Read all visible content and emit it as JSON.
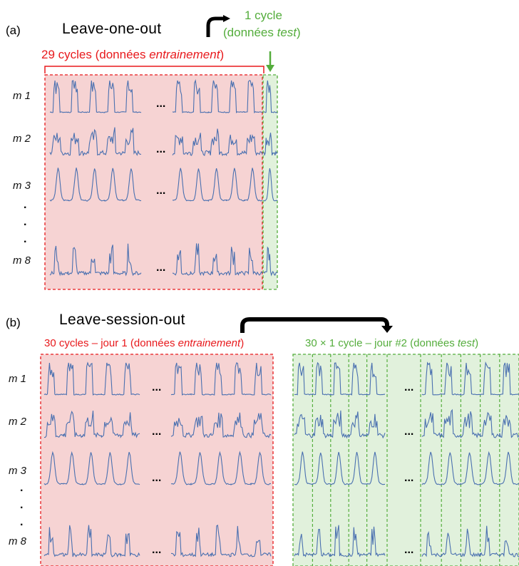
{
  "panel_a": {
    "label": "(a)",
    "title": "Leave-one-out",
    "test_line1": "1 cycle",
    "test_line2_pre": "(données ",
    "test_line2_it": "test",
    "test_line2_post": ")",
    "train_pre": "29 cycles (données ",
    "train_it": "entrainement",
    "train_post": ")",
    "rows": [
      "m 1",
      "m 2",
      "m 3",
      "m 8"
    ],
    "ellipsis": "..."
  },
  "panel_b": {
    "label": "(b)",
    "title": "Leave-session-out",
    "train_pre": "30 cycles – jour 1 (données ",
    "train_it": "entrainement",
    "train_post": ")",
    "test_pre": "30 × 1 cycle – jour #2 (données ",
    "test_it": "test",
    "test_post": ")",
    "rows": [
      "m 1",
      "m 2",
      "m 3",
      "m 8"
    ],
    "ellipsis": "..."
  },
  "colors": {
    "train_fill": "#f6d3d3",
    "train_border": "#e8191c",
    "test_fill": "#e1f1dc",
    "test_border": "#54ad3c",
    "signal": "#4a70b0"
  }
}
